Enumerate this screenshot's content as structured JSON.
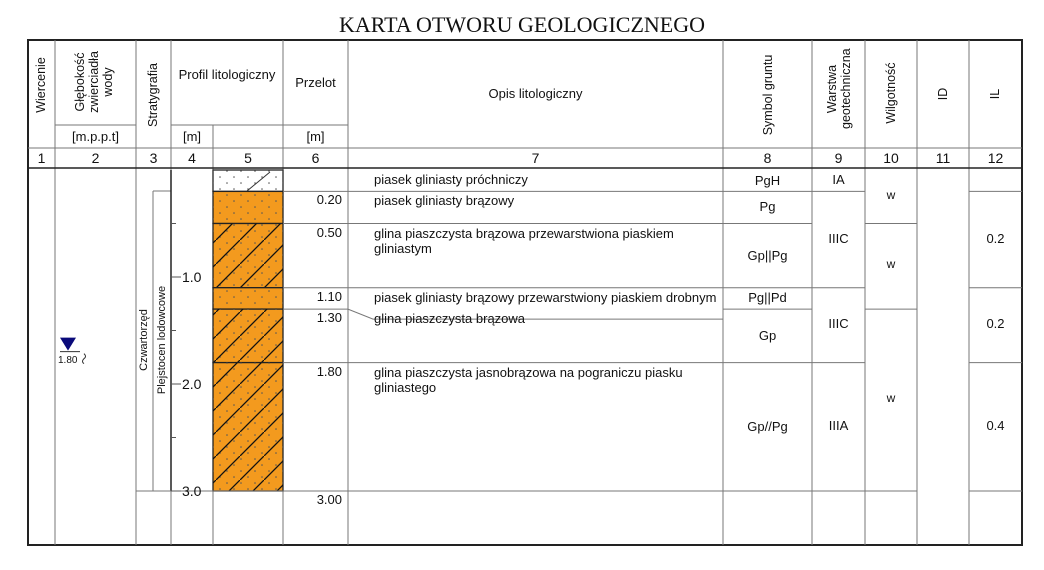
{
  "title": "KARTA OTWORU GEOLOGICZNEGO",
  "headers": {
    "wiercenie": "Wiercenie",
    "glebokosc": "Głębokość zwierciadła wody",
    "glebokosc_unit": "[m.p.p.t]",
    "stratygrafia": "Stratygrafia",
    "profil": "Profil litologiczny",
    "profil_unit": "[m]",
    "przelot": "Przelot",
    "przelot_unit": "[m]",
    "opis": "Opis litologiczny",
    "symbol": "Symbol gruntu",
    "warstwa": "Warstwa geotechniczna",
    "wilgotnosc": "Wilgotność",
    "id": "ID",
    "il": "IL"
  },
  "column_numbers": [
    "1",
    "2",
    "3",
    "4",
    "5",
    "6",
    "7",
    "8",
    "9",
    "10",
    "11",
    "12"
  ],
  "stratigraphy": {
    "era": "Czwartorzęd",
    "epoch": "Plejstocen lodowcowe"
  },
  "water_table": {
    "depth_label": "1.80",
    "depth": 1.8,
    "color": "#0a0a7a"
  },
  "scale_labels": [
    {
      "depth": 1.0,
      "label": "1.0"
    },
    {
      "depth": 2.0,
      "label": "2.0"
    },
    {
      "depth": 3.0,
      "label": "3.0"
    }
  ],
  "layers": [
    {
      "top": 0.0,
      "bottom": 0.2,
      "depth_label": "",
      "description": "piasek gliniasty próchniczy",
      "symbol": "PgH",
      "fill": "#ffffff",
      "hatch": false
    },
    {
      "top": 0.2,
      "bottom": 0.5,
      "depth_label": "0.20",
      "description": "piasek gliniasty brązowy",
      "symbol": "Pg",
      "fill": "#f39a1e",
      "hatch": false
    },
    {
      "top": 0.5,
      "bottom": 1.1,
      "depth_label": "0.50",
      "description": "glina piaszczysta brązowa przewarstwiona piaskiem gliniastym",
      "symbol": "Gp||Pg",
      "fill": "#f39a1e",
      "hatch": true
    },
    {
      "top": 1.1,
      "bottom": 1.3,
      "depth_label": "1.10",
      "description": "piasek gliniasty brązowy przewarstwiony piaskiem drobnym",
      "symbol": "Pg||Pd",
      "fill": "#f39a1e",
      "hatch": false
    },
    {
      "top": 1.3,
      "bottom": 1.8,
      "depth_label": "1.30",
      "description": "glina piaszczysta brązowa",
      "symbol": "Gp",
      "fill": "#f39a1e",
      "hatch": true
    },
    {
      "top": 1.8,
      "bottom": 3.0,
      "depth_label": "1.80",
      "description": "glina piaszczysta jasnobrązowa na pograniczu piasku gliniastego",
      "symbol": "Gp//Pg",
      "fill": "#f39a1e",
      "hatch": true
    }
  ],
  "end_depth_label": "3.00",
  "geotech_layers": [
    {
      "top": 0.0,
      "bottom": 0.2,
      "label": "IA"
    },
    {
      "top": 0.2,
      "bottom": 1.1,
      "label": "IIIC"
    },
    {
      "top": 1.1,
      "bottom": 1.8,
      "label": "IIIC"
    },
    {
      "top": 1.8,
      "bottom": 3.0,
      "label": "IIIA"
    }
  ],
  "moisture": [
    {
      "top": 0.0,
      "bottom": 0.5,
      "label": "w"
    },
    {
      "top": 0.5,
      "bottom": 1.3,
      "label": "w"
    },
    {
      "top": 1.3,
      "bottom": 3.0,
      "label": "w"
    }
  ],
  "il_values": [
    {
      "top": 0.2,
      "bottom": 1.1,
      "label": "0.2"
    },
    {
      "top": 1.1,
      "bottom": 1.8,
      "label": "0.2"
    },
    {
      "top": 1.8,
      "bottom": 3.0,
      "label": "0.4"
    }
  ]
}
